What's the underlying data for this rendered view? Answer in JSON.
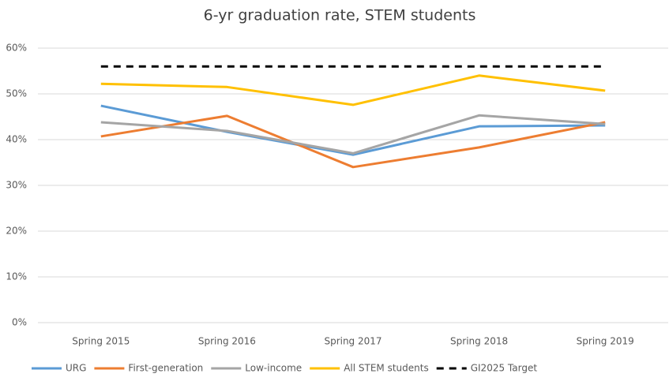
{
  "chart_data": {
    "type": "line",
    "title": "6-yr graduation rate, STEM students",
    "categories": [
      "Spring 2015",
      "Spring 2016",
      "Spring 2017",
      "Spring 2018",
      "Spring 2019"
    ],
    "series": [
      {
        "name": "URG",
        "color": "#5b9bd5",
        "values": [
          47.4,
          41.7,
          36.7,
          42.9,
          43.1
        ]
      },
      {
        "name": "First-generation",
        "color": "#ed7d31",
        "values": [
          40.7,
          45.2,
          34.0,
          38.3,
          43.8
        ]
      },
      {
        "name": "Low-income",
        "color": "#a5a5a5",
        "values": [
          43.8,
          41.9,
          37.0,
          45.3,
          43.4
        ]
      },
      {
        "name": "All STEM students",
        "color": "#ffc000",
        "values": [
          52.2,
          51.5,
          47.6,
          54.0,
          50.7
        ]
      },
      {
        "name": "GI2025 Target",
        "color": "#000000",
        "dashed": true,
        "values": [
          56,
          56,
          56,
          56,
          56
        ]
      }
    ],
    "ylim": [
      0,
      60
    ],
    "yticks": [
      {
        "value": 0,
        "label": "0%"
      },
      {
        "value": 10,
        "label": "10%"
      },
      {
        "value": 20,
        "label": "20%"
      },
      {
        "value": 30,
        "label": "30%"
      },
      {
        "value": 40,
        "label": "40%"
      },
      {
        "value": 50,
        "label": "50%"
      },
      {
        "value": 60,
        "label": "60%"
      }
    ],
    "grid": true,
    "legend": "bottom"
  }
}
